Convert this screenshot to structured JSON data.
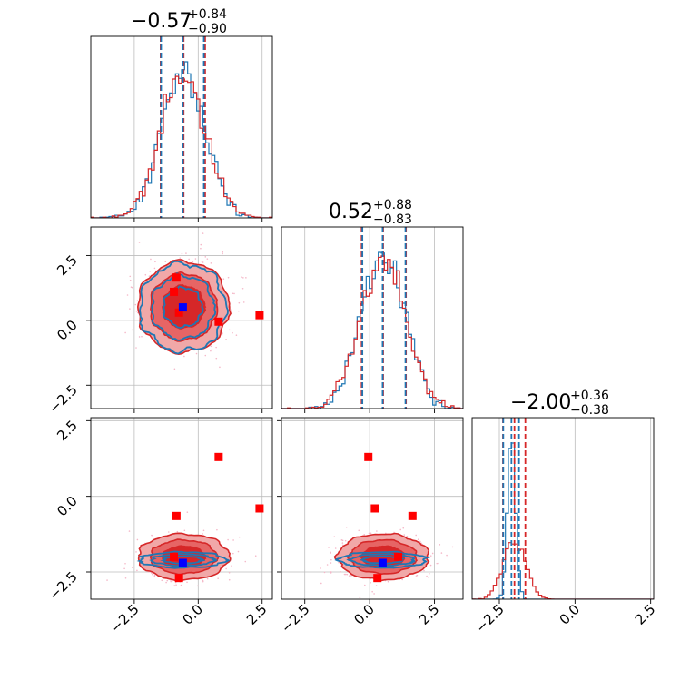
{
  "colors": {
    "red": "#d62728",
    "blue": "#1f77b4",
    "red_fill_outer": "#f1a8a8",
    "red_fill_mid": "#e66565",
    "red_fill_inner": "#d62728",
    "truth_red": "#ff0000",
    "truth_blue": "#0000ff"
  },
  "titles": {
    "p0": {
      "value": "−0.57",
      "plus": "+0.84",
      "minus": "−0.90"
    },
    "p1": {
      "value": "0.52",
      "plus": "+0.88",
      "minus": "−0.83"
    },
    "p2": {
      "value": "−2.00",
      "plus": "+0.36",
      "minus": "−0.38"
    }
  },
  "tick_labels": [
    "−2.5",
    "0.0",
    "2.5"
  ],
  "chart_data": {
    "type": "corner",
    "n_parameters": 3,
    "axis_ranges": {
      "p0": [
        -4.2,
        2.9
      ],
      "p1": [
        -3.4,
        3.6
      ],
      "p2": [
        -3.4,
        2.6
      ]
    },
    "ticks": [
      -2.5,
      0.0,
      2.5
    ],
    "grid": true,
    "series": [
      {
        "color": "red",
        "quantiles": {
          "p0": [
            -1.47,
            -0.57,
            0.27
          ],
          "p1": [
            -0.31,
            0.52,
            1.4
          ],
          "p2": [
            -2.38,
            -2.0,
            -1.64
          ]
        },
        "center": {
          "p0": -0.57,
          "p1": 0.52,
          "p2": -2.0
        },
        "spread": {
          "p0": 0.87,
          "p1": 0.86,
          "p2": 0.37
        }
      },
      {
        "color": "blue",
        "quantiles": {
          "p0": [
            -1.45,
            -0.6,
            0.22
          ],
          "p1": [
            -0.28,
            0.5,
            1.38
          ],
          "p2": [
            -2.37,
            -2.1,
            -1.85
          ]
        },
        "center": {
          "p0": -0.6,
          "p1": 0.5,
          "p2": -2.1
        },
        "spread": {
          "p0": 0.84,
          "p1": 0.84,
          "p2": 0.13
        }
      }
    ],
    "truth_points": {
      "red": [
        {
          "p0": -0.85,
          "p1": 1.65,
          "p2": -0.65
        },
        {
          "p0": -0.95,
          "p1": 1.1,
          "p2": -2.0
        },
        {
          "p0": -0.75,
          "p1": 0.3,
          "p2": -2.7
        },
        {
          "p0": 0.8,
          "p1": -0.05,
          "p2": 1.3
        },
        {
          "p0": 2.4,
          "p1": 0.2,
          "p2": -0.4
        }
      ],
      "blue": [
        {
          "p0": -0.6,
          "p1": 0.5,
          "p2": -2.2
        }
      ]
    }
  }
}
